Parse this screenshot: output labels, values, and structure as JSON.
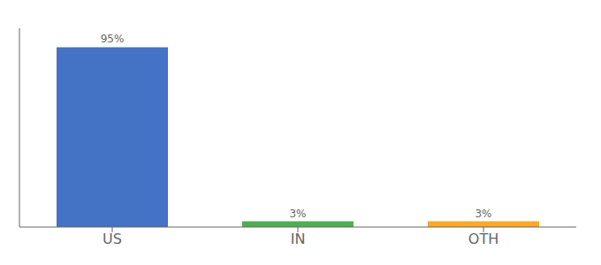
{
  "chart_data": {
    "type": "bar",
    "categories": [
      "US",
      "IN",
      "OTH"
    ],
    "values": [
      95,
      3,
      3
    ],
    "value_labels": [
      "95%",
      "3%",
      "3%"
    ],
    "colors": [
      "#4472C4",
      "#4CAF50",
      "#FFA726"
    ],
    "ylim": [
      0,
      105
    ],
    "data_labels": true,
    "tick_labels": "x",
    "grid": false
  }
}
